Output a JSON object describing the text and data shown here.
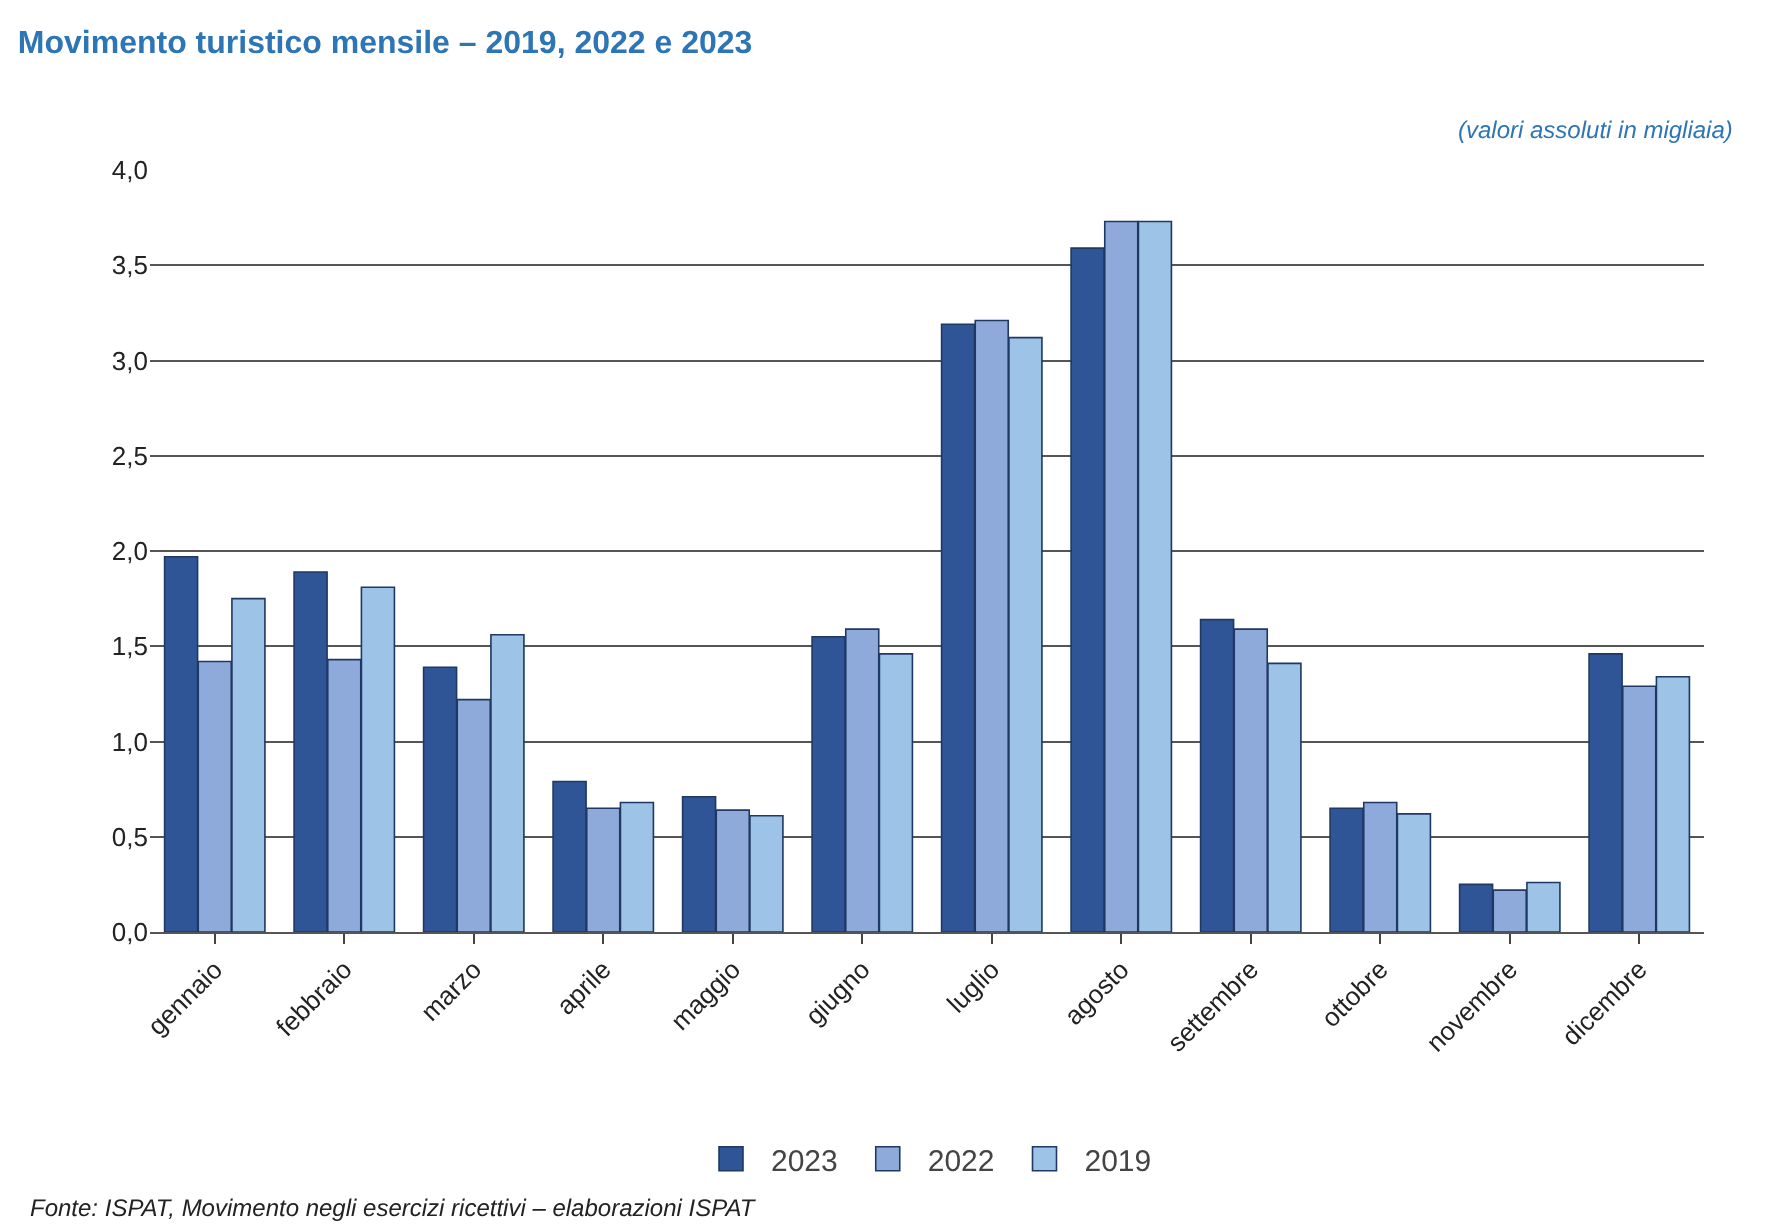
{
  "chart_data": {
    "type": "bar",
    "title": "Movimento turistico mensile – 2019, 2022 e 2023",
    "subtitle": "(valori assoluti in migliaia)",
    "categories": [
      "gennaio",
      "febbraio",
      "marzo",
      "aprile",
      "maggio",
      "giugno",
      "luglio",
      "agosto",
      "settembre",
      "ottobre",
      "novembre",
      "dicembre"
    ],
    "series": [
      {
        "name": "2023",
        "color": "#2f5597",
        "values": [
          1.97,
          1.89,
          1.39,
          0.79,
          0.71,
          1.55,
          3.19,
          3.59,
          1.64,
          0.65,
          0.25,
          1.46
        ]
      },
      {
        "name": "2022",
        "color": "#8eaadb",
        "values": [
          1.42,
          1.43,
          1.22,
          0.65,
          0.64,
          1.59,
          3.21,
          3.73,
          1.59,
          0.68,
          0.22,
          1.29
        ]
      },
      {
        "name": "2019",
        "color": "#9dc3e6",
        "values": [
          1.75,
          1.81,
          1.56,
          0.68,
          0.61,
          1.46,
          3.12,
          3.73,
          1.41,
          0.62,
          0.26,
          1.34
        ]
      }
    ],
    "ylim": [
      0,
      4
    ],
    "yticks": [
      {
        "value": 0,
        "label": "0,0"
      },
      {
        "value": 0.5,
        "label": "0,5"
      },
      {
        "value": 1,
        "label": "1,0"
      },
      {
        "value": 1.5,
        "label": "1,5"
      },
      {
        "value": 2,
        "label": "2,0"
      },
      {
        "value": 2.5,
        "label": "2,5"
      },
      {
        "value": 3,
        "label": "3,0"
      },
      {
        "value": 3.5,
        "label": "3,5"
      },
      {
        "value": 4,
        "label": "4,0"
      }
    ],
    "grid": "y",
    "legend": "bottom",
    "annotations": [
      "Fonte: ISPAT, Movimento negli esercizi ricettivi – elaborazioni ISPAT"
    ]
  }
}
